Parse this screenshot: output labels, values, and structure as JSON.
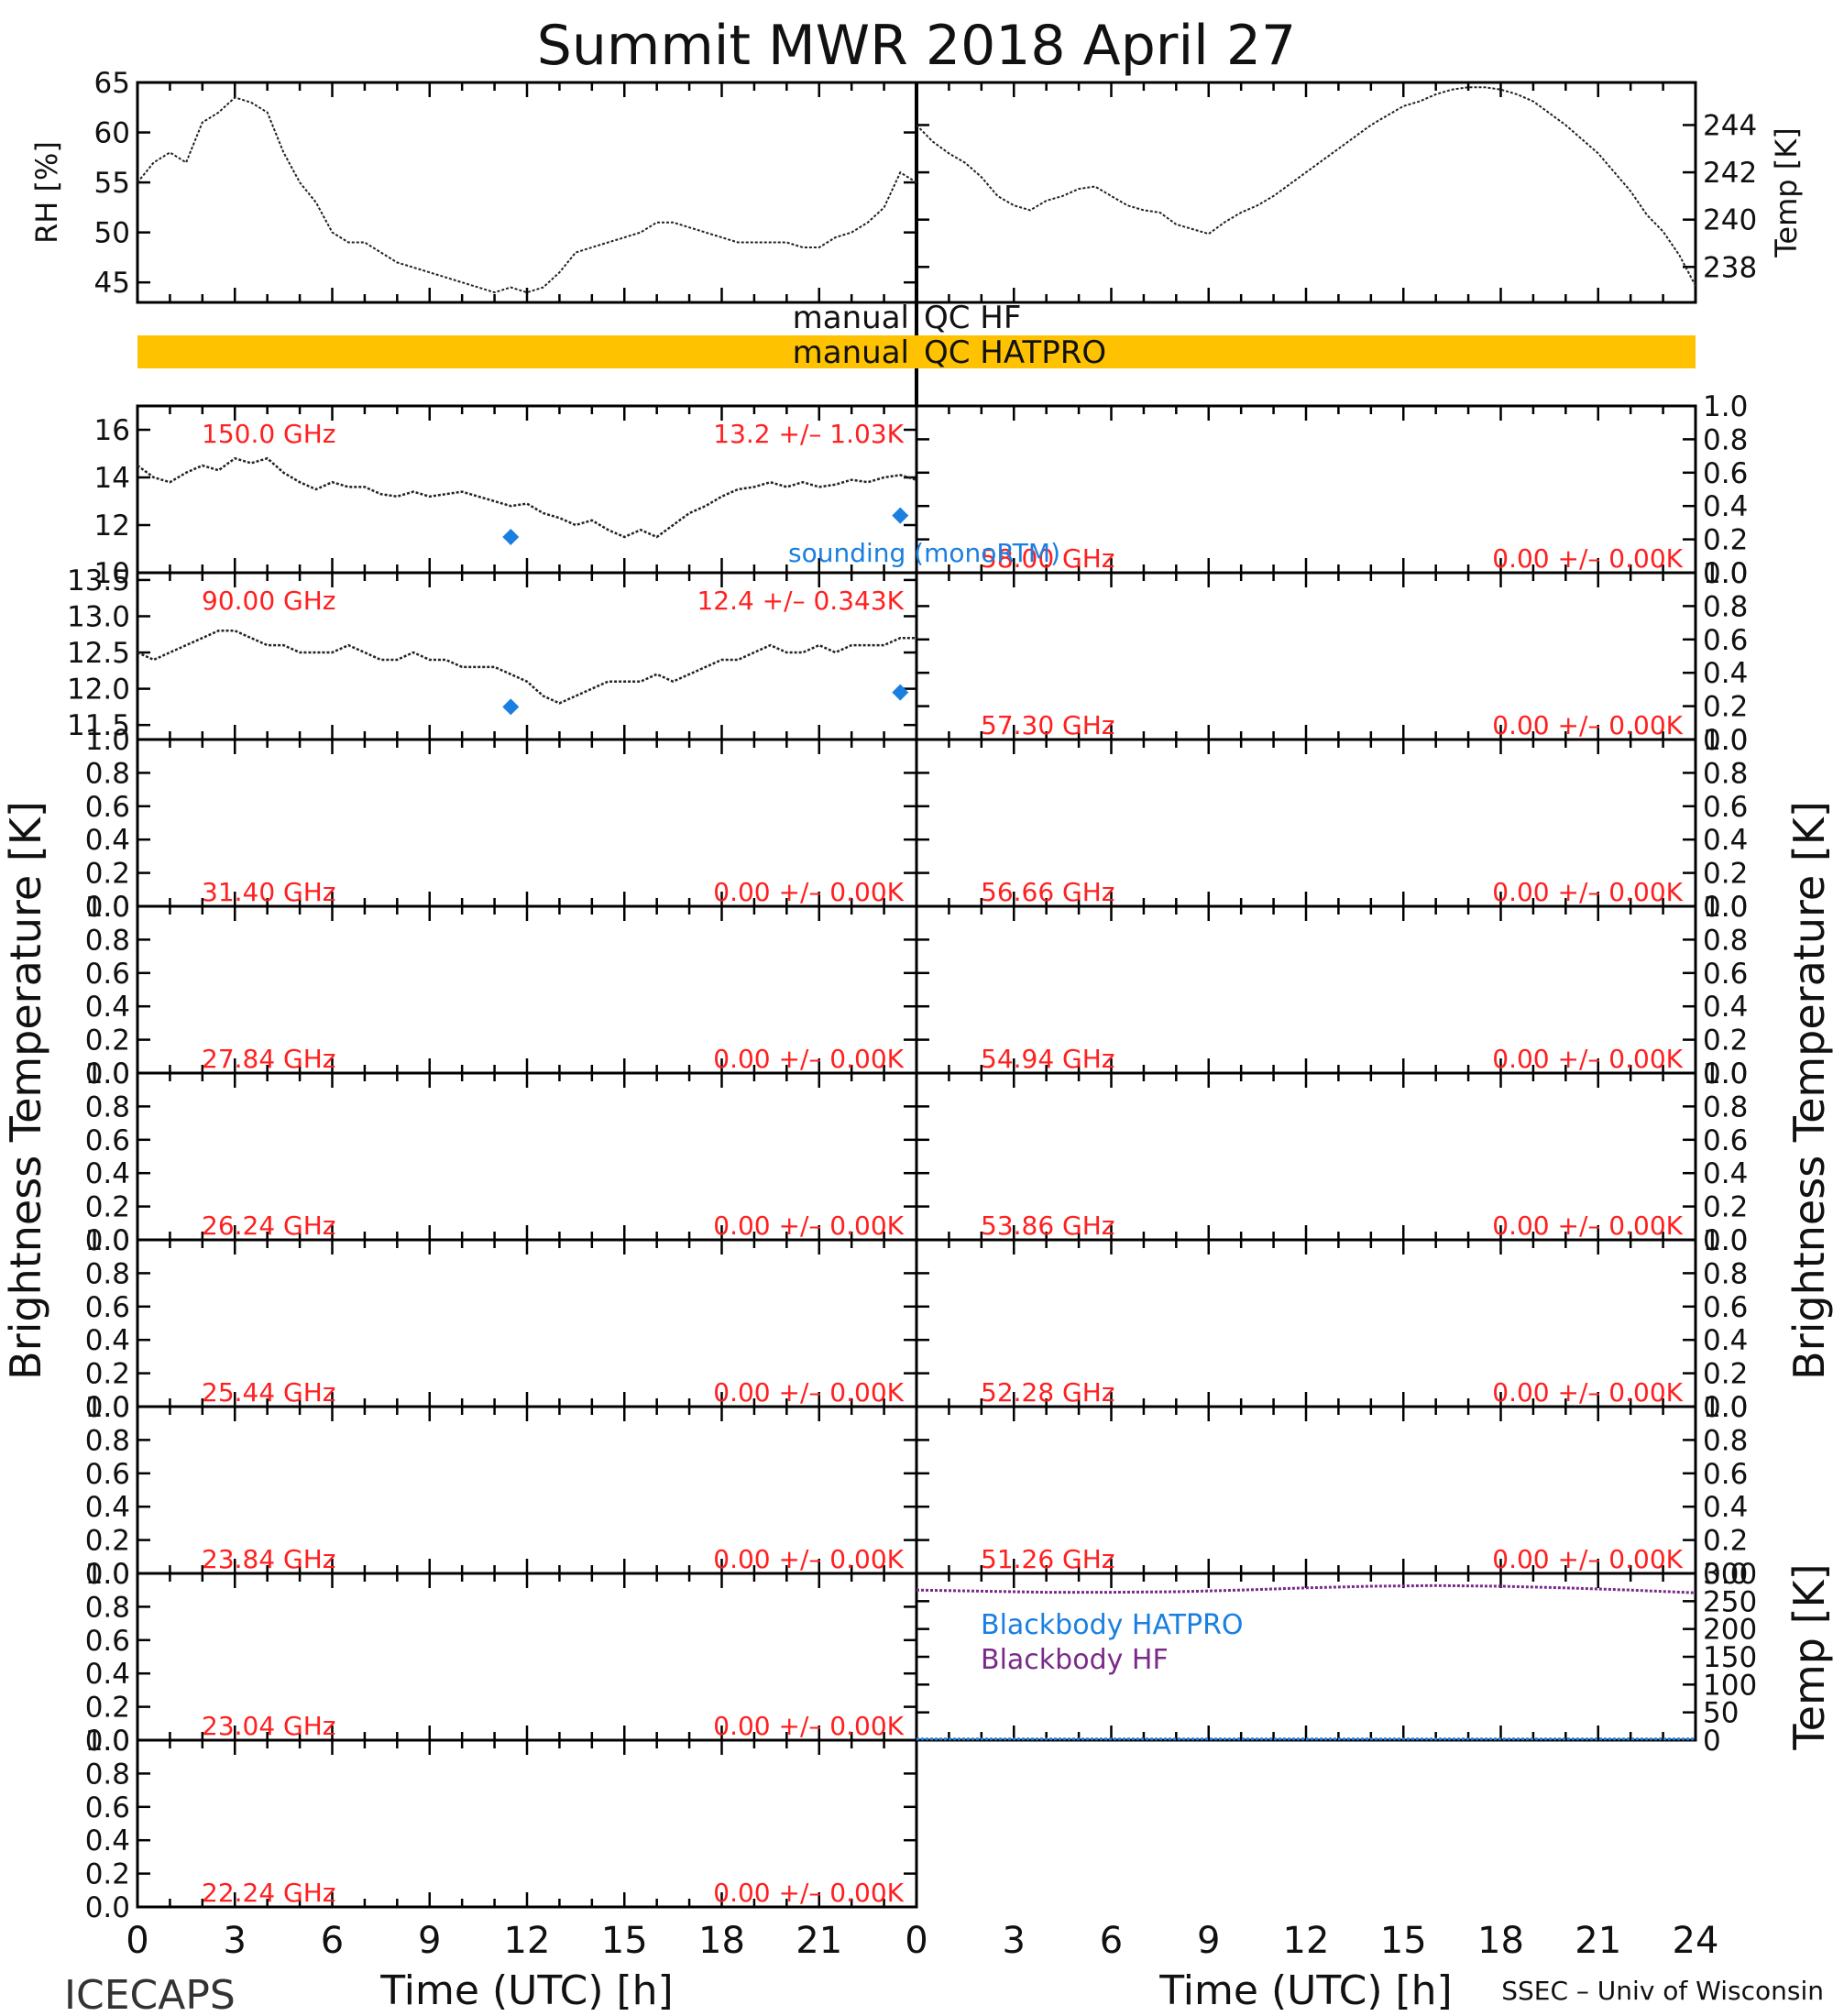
{
  "title": "Summit MWR 2018 April 27",
  "footer": {
    "left": "ICECAPS",
    "right": "SSEC – Univ of Wisconsin"
  },
  "colors": {
    "annotation": "#ff2020",
    "sounding": "#1a7fe0",
    "qc_bar": "#ffc200",
    "blackbody_hatpro": "#1a7fe0",
    "blackbody_hf": "#7a2a8a",
    "trace": "#222222"
  },
  "qc": {
    "hf_left": "manual",
    "hf_right": "QC HF",
    "hatpro_left": "manual",
    "hatpro_right": "QC HATPRO"
  },
  "xaxis": {
    "label": "Time (UTC) [h]",
    "ticks": [
      "0",
      "3",
      "6",
      "9",
      "12",
      "15",
      "18",
      "21",
      "24"
    ],
    "range": [
      0,
      24
    ]
  },
  "axis_titles": {
    "rh": "RH [%]",
    "temp": "Temp [K]",
    "tb_left": "Brightness Temperature [K]",
    "tb_right": "Brightness Temperature [K]",
    "bb_temp": "Temp [K]"
  },
  "legend": {
    "sounding": "sounding (monoRTM)",
    "bb_hatpro": "Blackbody HATPRO",
    "bb_hf": "Blackbody HF"
  },
  "chart_data": [
    {
      "id": "met",
      "type": "line",
      "x_range": [
        0,
        24
      ],
      "series": [
        {
          "name": "RH [%]",
          "axis": "left",
          "ylim": [
            43,
            65
          ],
          "yticks": [
            "45",
            "50",
            "55",
            "60",
            "65"
          ],
          "x": [
            0,
            0.5,
            1,
            1.5,
            2,
            2.5,
            3,
            3.5,
            4,
            4.5,
            5,
            5.5,
            6,
            6.5,
            7,
            7.5,
            8,
            8.5,
            9,
            9.5,
            10,
            10.5,
            11,
            11.5,
            12,
            12.5,
            13,
            13.5,
            14,
            14.5,
            15,
            15.5,
            16,
            16.5,
            17,
            17.5,
            18,
            18.5,
            19,
            19.5,
            20,
            20.5,
            21,
            21.5,
            22,
            22.5,
            23,
            23.5,
            24
          ],
          "y": [
            55,
            57,
            58,
            57,
            61,
            62,
            63.5,
            63,
            62,
            58,
            55,
            53,
            50,
            49,
            49,
            48,
            47,
            46.5,
            46,
            45.5,
            45,
            44.5,
            44,
            44.5,
            44,
            44.5,
            46,
            48,
            48.5,
            49,
            49.5,
            50,
            51,
            51,
            50.5,
            50,
            49.5,
            49,
            49,
            49,
            49,
            48.5,
            48.5,
            49.5,
            50,
            51,
            52.5,
            56,
            55
          ]
        },
        {
          "name": "Temp [K]",
          "axis": "right",
          "ylim": [
            236.5,
            245.8
          ],
          "yticks": [
            "238",
            "240",
            "242",
            "244"
          ],
          "x": [
            0,
            0.5,
            1,
            1.5,
            2,
            2.5,
            3,
            3.5,
            4,
            4.5,
            5,
            5.5,
            6,
            6.5,
            7,
            7.5,
            8,
            8.5,
            9,
            9.5,
            10,
            10.5,
            11,
            11.5,
            12,
            12.5,
            13,
            13.5,
            14,
            14.5,
            15,
            15.5,
            16,
            16.5,
            17,
            17.5,
            18,
            18.5,
            19,
            19.5,
            20,
            20.5,
            21,
            21.5,
            22,
            22.5,
            23,
            23.5,
            24
          ],
          "y": [
            244,
            243.3,
            242.8,
            242.4,
            241.8,
            241,
            240.6,
            240.4,
            240.8,
            241,
            241.3,
            241.4,
            241,
            240.6,
            240.4,
            240.3,
            239.8,
            239.6,
            239.4,
            239.9,
            240.3,
            240.6,
            241,
            241.5,
            242,
            242.5,
            243,
            243.5,
            244,
            244.4,
            244.8,
            245,
            245.3,
            245.5,
            245.6,
            245.6,
            245.5,
            245.3,
            245,
            244.5,
            244,
            243.4,
            242.8,
            242,
            241.2,
            240.2,
            239.5,
            238.5,
            237.2
          ]
        }
      ]
    },
    {
      "id": "ch-150",
      "type": "line",
      "column": "left",
      "freq_label": "150.0 GHz",
      "stats_label": "13.2 +/– 1.03K",
      "ylim": [
        10,
        17
      ],
      "yticks": [
        "10",
        "12",
        "14",
        "16"
      ],
      "x": [
        0,
        0.5,
        1,
        1.5,
        2,
        2.5,
        3,
        3.5,
        4,
        4.5,
        5,
        5.5,
        6,
        6.5,
        7,
        7.5,
        8,
        8.5,
        9,
        9.5,
        10,
        10.5,
        11,
        11.5,
        12,
        12.5,
        13,
        13.5,
        14,
        14.5,
        15,
        15.5,
        16,
        16.5,
        17,
        17.5,
        18,
        18.5,
        19,
        19.5,
        20,
        20.5,
        21,
        21.5,
        22,
        22.5,
        23,
        23.5,
        24
      ],
      "y": [
        14.5,
        14,
        13.8,
        14.2,
        14.5,
        14.3,
        14.8,
        14.6,
        14.8,
        14.2,
        13.8,
        13.5,
        13.8,
        13.6,
        13.6,
        13.3,
        13.2,
        13.4,
        13.2,
        13.3,
        13.4,
        13.2,
        13,
        12.8,
        12.9,
        12.5,
        12.3,
        12,
        12.2,
        11.8,
        11.5,
        11.8,
        11.5,
        12,
        12.5,
        12.8,
        13.2,
        13.5,
        13.6,
        13.8,
        13.6,
        13.8,
        13.6,
        13.7,
        13.9,
        13.8,
        14,
        14.1,
        13.9
      ],
      "sounding_x": [
        11.5,
        23.5
      ],
      "sounding_y": [
        11.5,
        12.4
      ]
    },
    {
      "id": "ch-90",
      "type": "line",
      "column": "left",
      "freq_label": "90.00 GHz",
      "stats_label": "12.4 +/– 0.343K",
      "ylim": [
        11.3,
        13.6
      ],
      "yticks": [
        "11.5",
        "12.0",
        "12.5",
        "13.0",
        "13.5"
      ],
      "x": [
        0,
        0.5,
        1,
        1.5,
        2,
        2.5,
        3,
        3.5,
        4,
        4.5,
        5,
        5.5,
        6,
        6.5,
        7,
        7.5,
        8,
        8.5,
        9,
        9.5,
        10,
        10.5,
        11,
        11.5,
        12,
        12.5,
        13,
        13.5,
        14,
        14.5,
        15,
        15.5,
        16,
        16.5,
        17,
        17.5,
        18,
        18.5,
        19,
        19.5,
        20,
        20.5,
        21,
        21.5,
        22,
        22.5,
        23,
        23.5,
        24
      ],
      "y": [
        12.5,
        12.4,
        12.5,
        12.6,
        12.7,
        12.8,
        12.8,
        12.7,
        12.6,
        12.6,
        12.5,
        12.5,
        12.5,
        12.6,
        12.5,
        12.4,
        12.4,
        12.5,
        12.4,
        12.4,
        12.3,
        12.3,
        12.3,
        12.2,
        12.1,
        11.9,
        11.8,
        11.9,
        12,
        12.1,
        12.1,
        12.1,
        12.2,
        12.1,
        12.2,
        12.3,
        12.4,
        12.4,
        12.5,
        12.6,
        12.5,
        12.5,
        12.6,
        12.5,
        12.6,
        12.6,
        12.6,
        12.7,
        12.7
      ],
      "sounding_x": [
        11.5,
        23.5
      ],
      "sounding_y": [
        11.75,
        11.95
      ]
    },
    {
      "id": "ch-31.40",
      "type": "line",
      "column": "left",
      "freq_label": "31.40 GHz",
      "stats_label": "0.00 +/– 0.00K",
      "ylim": [
        0,
        1
      ],
      "yticks": [
        "0.0",
        "0.2",
        "0.4",
        "0.6",
        "0.8",
        "1.0"
      ],
      "x": [],
      "y": []
    },
    {
      "id": "ch-27.84",
      "type": "line",
      "column": "left",
      "freq_label": "27.84 GHz",
      "stats_label": "0.00 +/– 0.00K",
      "ylim": [
        0,
        1
      ],
      "yticks": [
        "0.0",
        "0.2",
        "0.4",
        "0.6",
        "0.8",
        "1.0"
      ],
      "x": [],
      "y": []
    },
    {
      "id": "ch-26.24",
      "type": "line",
      "column": "left",
      "freq_label": "26.24 GHz",
      "stats_label": "0.00 +/– 0.00K",
      "ylim": [
        0,
        1
      ],
      "yticks": [
        "0.0",
        "0.2",
        "0.4",
        "0.6",
        "0.8",
        "1.0"
      ],
      "x": [],
      "y": []
    },
    {
      "id": "ch-25.44",
      "type": "line",
      "column": "left",
      "freq_label": "25.44 GHz",
      "stats_label": "0.00 +/– 0.00K",
      "ylim": [
        0,
        1
      ],
      "yticks": [
        "0.0",
        "0.2",
        "0.4",
        "0.6",
        "0.8",
        "1.0"
      ],
      "x": [],
      "y": []
    },
    {
      "id": "ch-23.84",
      "type": "line",
      "column": "left",
      "freq_label": "23.84 GHz",
      "stats_label": "0.00 +/– 0.00K",
      "ylim": [
        0,
        1
      ],
      "yticks": [
        "0.0",
        "0.2",
        "0.4",
        "0.6",
        "0.8",
        "1.0"
      ],
      "x": [],
      "y": []
    },
    {
      "id": "ch-23.04",
      "type": "line",
      "column": "left",
      "freq_label": "23.04 GHz",
      "stats_label": "0.00 +/– 0.00K",
      "ylim": [
        0,
        1
      ],
      "yticks": [
        "0.0",
        "0.2",
        "0.4",
        "0.6",
        "0.8",
        "1.0"
      ],
      "x": [],
      "y": []
    },
    {
      "id": "ch-22.24",
      "type": "line",
      "column": "left",
      "freq_label": "22.24 GHz",
      "stats_label": "0.00 +/– 0.00K",
      "ylim": [
        0,
        1
      ],
      "yticks": [
        "0.0",
        "0.2",
        "0.4",
        "0.6",
        "0.8",
        "1.0"
      ],
      "x": [],
      "y": []
    },
    {
      "id": "ch-58.00",
      "type": "line",
      "column": "right",
      "freq_label": "58.00 GHz",
      "stats_label": "0.00 +/– 0.00K",
      "ylim": [
        0,
        1
      ],
      "yticks": [
        "0.0",
        "0.2",
        "0.4",
        "0.6",
        "0.8",
        "1.0"
      ],
      "x": [],
      "y": []
    },
    {
      "id": "ch-57.30",
      "type": "line",
      "column": "right",
      "freq_label": "57.30 GHz",
      "stats_label": "0.00 +/– 0.00K",
      "ylim": [
        0,
        1
      ],
      "yticks": [
        "0.0",
        "0.2",
        "0.4",
        "0.6",
        "0.8",
        "1.0"
      ],
      "x": [],
      "y": []
    },
    {
      "id": "ch-56.66",
      "type": "line",
      "column": "right",
      "freq_label": "56.66 GHz",
      "stats_label": "0.00 +/– 0.00K",
      "ylim": [
        0,
        1
      ],
      "yticks": [
        "0.0",
        "0.2",
        "0.4",
        "0.6",
        "0.8",
        "1.0"
      ],
      "x": [],
      "y": []
    },
    {
      "id": "ch-54.94",
      "type": "line",
      "column": "right",
      "freq_label": "54.94 GHz",
      "stats_label": "0.00 +/– 0.00K",
      "ylim": [
        0,
        1
      ],
      "yticks": [
        "0.0",
        "0.2",
        "0.4",
        "0.6",
        "0.8",
        "1.0"
      ],
      "x": [],
      "y": []
    },
    {
      "id": "ch-53.86",
      "type": "line",
      "column": "right",
      "freq_label": "53.86 GHz",
      "stats_label": "0.00 +/– 0.00K",
      "ylim": [
        0,
        1
      ],
      "yticks": [
        "0.0",
        "0.2",
        "0.4",
        "0.6",
        "0.8",
        "1.0"
      ],
      "x": [],
      "y": []
    },
    {
      "id": "ch-52.28",
      "type": "line",
      "column": "right",
      "freq_label": "52.28 GHz",
      "stats_label": "0.00 +/– 0.00K",
      "ylim": [
        0,
        1
      ],
      "yticks": [
        "0.0",
        "0.2",
        "0.4",
        "0.6",
        "0.8",
        "1.0"
      ],
      "x": [],
      "y": []
    },
    {
      "id": "ch-51.26",
      "type": "line",
      "column": "right",
      "freq_label": "51.26 GHz",
      "stats_label": "0.00 +/– 0.00K",
      "ylim": [
        0,
        1
      ],
      "yticks": [
        "0.0",
        "0.2",
        "0.4",
        "0.6",
        "0.8",
        "1.0"
      ],
      "x": [],
      "y": []
    },
    {
      "id": "blackbody",
      "type": "line",
      "column": "right",
      "ylim": [
        0,
        300
      ],
      "yticks": [
        "0",
        "50",
        "100",
        "150",
        "200",
        "250",
        "300"
      ],
      "series": [
        {
          "name": "Blackbody HATPRO",
          "x": [
            0,
            24
          ],
          "y": [
            2,
            2
          ]
        },
        {
          "name": "Blackbody HF",
          "x": [
            0,
            2,
            4,
            6,
            8,
            10,
            12,
            14,
            16,
            18,
            20,
            22,
            24
          ],
          "y": [
            270,
            268,
            266,
            266,
            267,
            270,
            274,
            277,
            278,
            277,
            274,
            270,
            265
          ]
        }
      ]
    }
  ]
}
